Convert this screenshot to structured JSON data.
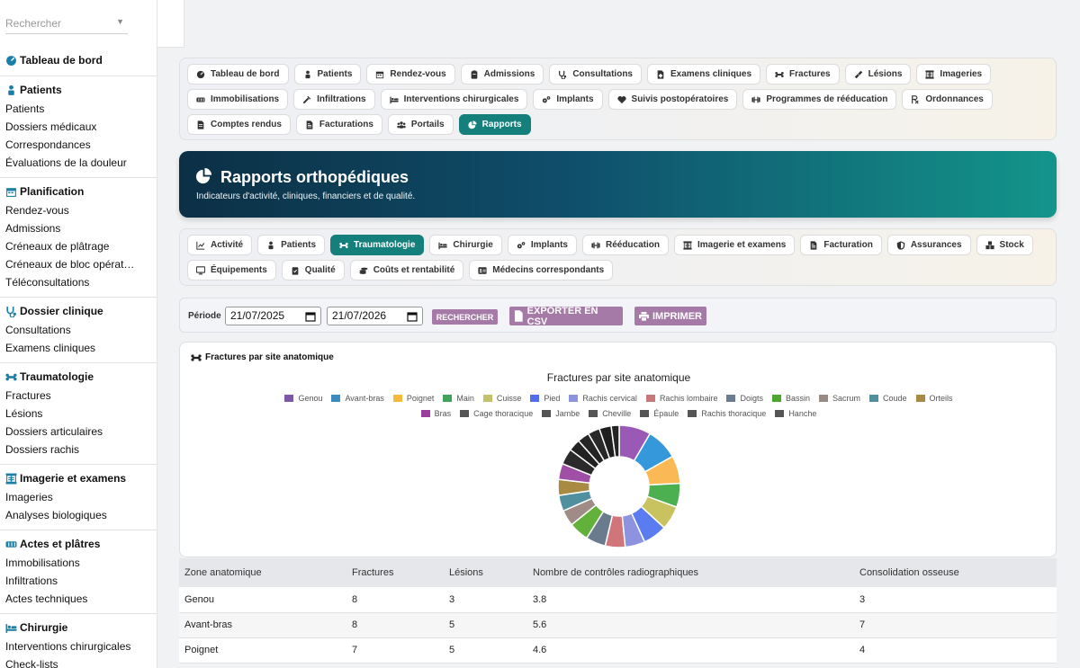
{
  "sidebar": {
    "search_placeholder": "Rechercher",
    "sections": [
      {
        "title": "Tableau de bord",
        "icon": "dashboard-icon",
        "items": []
      },
      {
        "title": "Patients",
        "icon": "patient-icon",
        "items": [
          "Patients",
          "Dossiers médicaux",
          "Correspondances",
          "Évaluations de la douleur"
        ]
      },
      {
        "title": "Planification",
        "icon": "calendar-icon",
        "items": [
          "Rendez-vous",
          "Admissions",
          "Créneaux de plâtrage",
          "Créneaux de bloc opérat…",
          "Téléconsultations"
        ]
      },
      {
        "title": "Dossier clinique",
        "icon": "stethoscope-icon",
        "items": [
          "Consultations",
          "Examens cliniques"
        ]
      },
      {
        "title": "Traumatologie",
        "icon": "bone-icon",
        "items": [
          "Fractures",
          "Lésions",
          "Dossiers articulaires",
          "Dossiers rachis"
        ]
      },
      {
        "title": "Imagerie et examens",
        "icon": "xray-icon",
        "items": [
          "Imageries",
          "Analyses biologiques"
        ]
      },
      {
        "title": "Actes et plâtres",
        "icon": "cast-icon",
        "items": [
          "Immobilisations",
          "Infiltrations",
          "Actes techniques"
        ]
      },
      {
        "title": "Chirurgie",
        "icon": "surgery-bed-icon",
        "items": [
          "Interventions chirurgicales",
          "Check-lists"
        ]
      }
    ]
  },
  "modules": [
    {
      "label": "Tableau de bord",
      "icon": "dashboard-icon",
      "active": false
    },
    {
      "label": "Patients",
      "icon": "patient-icon",
      "active": false
    },
    {
      "label": "Rendez-vous",
      "icon": "calendar-icon",
      "active": false
    },
    {
      "label": "Admissions",
      "icon": "clipboard-icon",
      "active": false
    },
    {
      "label": "Consultations",
      "icon": "stethoscope-icon",
      "active": false
    },
    {
      "label": "Examens cliniques",
      "icon": "file-medical-icon",
      "active": false
    },
    {
      "label": "Fractures",
      "icon": "bone-icon",
      "active": false
    },
    {
      "label": "Lésions",
      "icon": "bandage-icon",
      "active": false
    },
    {
      "label": "Imageries",
      "icon": "xray-icon",
      "active": false
    },
    {
      "label": "Immobilisations",
      "icon": "cast-icon",
      "active": false
    },
    {
      "label": "Infiltrations",
      "icon": "syringe-icon",
      "active": false
    },
    {
      "label": "Interventions chirurgicales",
      "icon": "surgery-bed-icon",
      "active": false
    },
    {
      "label": "Implants",
      "icon": "gears-icon",
      "active": false
    },
    {
      "label": "Suivis postopératoires",
      "icon": "heart-icon",
      "active": false
    },
    {
      "label": "Programmes de rééducation",
      "icon": "dumbbell-icon",
      "active": false
    },
    {
      "label": "Ordonnances",
      "icon": "prescription-icon",
      "active": false
    },
    {
      "label": "Comptes rendus",
      "icon": "file-icon",
      "active": false
    },
    {
      "label": "Facturations",
      "icon": "invoice-icon",
      "active": false
    },
    {
      "label": "Portails",
      "icon": "users-icon",
      "active": false
    },
    {
      "label": "Rapports",
      "icon": "pie-chart-icon",
      "active": true
    }
  ],
  "banner": {
    "title": "Rapports orthopédiques",
    "subtitle": "Indicateurs d'activité, cliniques, financiers et de qualité."
  },
  "report_tabs": [
    {
      "label": "Activité",
      "icon": "line-chart-icon",
      "active": false
    },
    {
      "label": "Patients",
      "icon": "patient-icon",
      "active": false
    },
    {
      "label": "Traumatologie",
      "icon": "bone-icon",
      "active": true
    },
    {
      "label": "Chirurgie",
      "icon": "surgery-bed-icon",
      "active": false
    },
    {
      "label": "Implants",
      "icon": "gears-icon",
      "active": false
    },
    {
      "label": "Rééducation",
      "icon": "dumbbell-icon",
      "active": false
    },
    {
      "label": "Imagerie et examens",
      "icon": "xray-icon",
      "active": false
    },
    {
      "label": "Facturation",
      "icon": "invoice-icon",
      "active": false
    },
    {
      "label": "Assurances",
      "icon": "shield-icon",
      "active": false
    },
    {
      "label": "Stock",
      "icon": "boxes-icon",
      "active": false
    },
    {
      "label": "Équipements",
      "icon": "monitor-icon",
      "active": false
    },
    {
      "label": "Qualité",
      "icon": "clipboard-check-icon",
      "active": false
    },
    {
      "label": "Coûts et rentabilité",
      "icon": "coins-icon",
      "active": false
    },
    {
      "label": "Médecins correspondants",
      "icon": "id-card-icon",
      "active": false
    }
  ],
  "filters": {
    "period_label": "Période",
    "date_from": "21/07/2025",
    "date_to": "21/07/2026",
    "search_button": "RECHERCHER",
    "export_button": "EXPORTER EN CSV",
    "print_button": "IMPRIMER"
  },
  "card": {
    "title": "Fractures par site anatomique"
  },
  "chart_data": {
    "type": "pie",
    "donut": true,
    "title": "Fractures par site anatomique",
    "legend_position": "top",
    "categories": [
      "Genou",
      "Avant-bras",
      "Poignet",
      "Main",
      "Cuisse",
      "Pied",
      "Rachis cervical",
      "Rachis lombaire",
      "Doigts",
      "Bassin",
      "Sacrum",
      "Coude",
      "Orteils",
      "Bras",
      "Cage thoracique",
      "Jambe",
      "Cheville",
      "Épaule",
      "Rachis thoracique",
      "Hanche"
    ],
    "values": [
      8,
      8,
      7,
      6,
      6,
      6,
      5,
      5,
      5,
      5,
      4,
      4,
      4,
      4,
      4,
      3,
      3,
      3,
      3,
      2
    ],
    "colors": [
      "#9b59b6",
      "#3498db",
      "#fbb955",
      "#4caf50",
      "#c9c35f",
      "#5b7cf0",
      "#8d93de",
      "#d0757a",
      "#6b7b8e",
      "#62b13a",
      "#a08c86",
      "#4f8f9e",
      "#a88a43",
      "#a04fa6",
      "#2b2b2b",
      "#222222",
      "#252525",
      "#282828",
      "#1f1f1f",
      "#242424"
    ],
    "legend_swatches": [
      "#7e57a8",
      "#3c8bc0",
      "#f6b93b",
      "#3fa35a",
      "#c5c06a",
      "#4f6ee8",
      "#8c92dc",
      "#c8777b",
      "#6c7c8f",
      "#4ba82d",
      "#9a8a84",
      "#4f8f9e",
      "#a88a43",
      "#9a3f9e",
      "#555555",
      "#555555",
      "#555555",
      "#555555",
      "#555555",
      "#555555"
    ]
  },
  "table": {
    "headers": [
      "Zone anatomique",
      "Fractures",
      "Lésions",
      "Nombre de contrôles radiographiques",
      "Consolidation osseuse"
    ],
    "rows": [
      [
        "Genou",
        "8",
        "3",
        "3.8",
        "3"
      ],
      [
        "Avant-bras",
        "8",
        "5",
        "5.6",
        "7"
      ],
      [
        "Poignet",
        "7",
        "5",
        "4.6",
        "4"
      ]
    ]
  }
}
